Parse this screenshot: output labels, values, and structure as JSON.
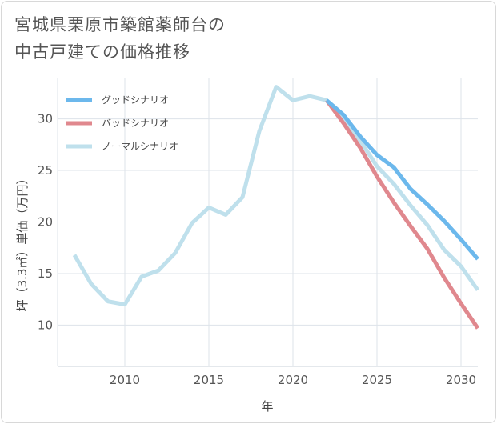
{
  "title_lines": [
    "宮城県栗原市築館薬師台の",
    "中古戸建ての価格推移"
  ],
  "chart_data": {
    "type": "line",
    "title": "宮城県栗原市築館薬師台の中古戸建ての価格推移",
    "xlabel": "年",
    "ylabel": "坪（3.3㎡）単価（万円）",
    "xlim": [
      2006,
      2031
    ],
    "ylim": [
      6,
      34
    ],
    "xticks": [
      2010,
      2015,
      2020,
      2025,
      2030
    ],
    "yticks": [
      10,
      15,
      20,
      25,
      30
    ],
    "grid": true,
    "legend_position": "top-left",
    "series": [
      {
        "name": "グッドシナリオ",
        "color": "#6cb8ec",
        "x": [
          2022,
          2023,
          2024,
          2025,
          2026,
          2027,
          2028,
          2029,
          2030,
          2031
        ],
        "y": [
          31.8,
          30.4,
          28.3,
          26.5,
          25.3,
          23.2,
          21.7,
          20.1,
          18.3,
          16.4
        ]
      },
      {
        "name": "バッドシナリオ",
        "color": "#e0888e",
        "x": [
          2022,
          2023,
          2024,
          2025,
          2026,
          2027,
          2028,
          2029,
          2030,
          2031
        ],
        "y": [
          31.8,
          29.6,
          27.2,
          24.4,
          21.9,
          19.6,
          17.4,
          14.6,
          12.1,
          9.7
        ]
      },
      {
        "name": "ノーマルシナリオ",
        "color": "#bfe0ec",
        "x": [
          2007,
          2008,
          2009,
          2010,
          2011,
          2012,
          2013,
          2014,
          2015,
          2016,
          2017,
          2018,
          2019,
          2020,
          2021,
          2022,
          2023,
          2024,
          2025,
          2026,
          2027,
          2028,
          2029,
          2030,
          2031
        ],
        "y": [
          16.8,
          14.0,
          12.3,
          12.0,
          14.7,
          15.3,
          17.0,
          19.9,
          21.4,
          20.7,
          22.4,
          28.8,
          33.1,
          31.8,
          32.2,
          31.8,
          29.9,
          27.9,
          25.4,
          23.7,
          21.6,
          19.7,
          17.3,
          15.7,
          13.4
        ]
      }
    ]
  }
}
